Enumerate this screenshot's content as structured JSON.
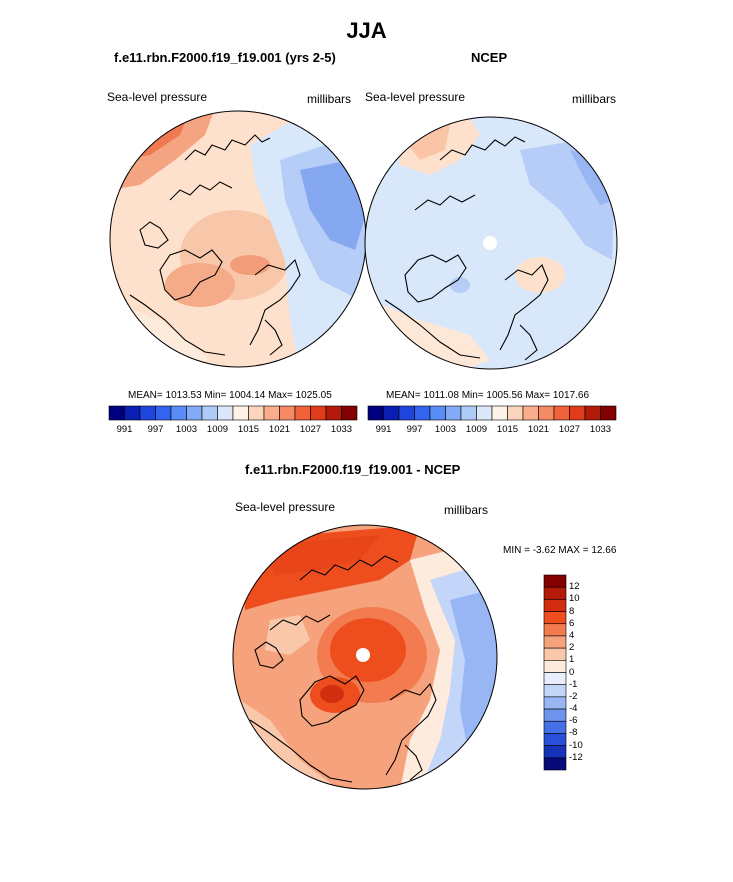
{
  "figure": {
    "title": "JJA"
  },
  "panels": [
    {
      "id": "model",
      "title": "f.e11.rbn.F2000.f19_f19.001 (yrs 2-5)",
      "left_label": "Sea-level pressure",
      "right_label": "millibars",
      "stats": "MEAN= 1013.53  Min= 1004.14  Max= 1025.05",
      "mean": 1013.53,
      "min": 1004.14,
      "max": 1025.05
    },
    {
      "id": "ncep",
      "title": "NCEP",
      "left_label": "Sea-level pressure",
      "right_label": "millibars",
      "stats": "MEAN= 1011.08  Min= 1005.56  Max= 1017.66",
      "mean": 1011.08,
      "min": 1005.56,
      "max": 1017.66
    },
    {
      "id": "diff",
      "title": "f.e11.rbn.F2000.f19_f19.001 - NCEP",
      "left_label": "Sea-level pressure",
      "right_label": "millibars",
      "stats": "MIN =  -3.62 MAX =  12.66",
      "min": -3.62,
      "max": 12.66
    }
  ],
  "abs_colorbar": {
    "colors": [
      "#00007f",
      "#0a1eb4",
      "#1e46dc",
      "#3264f0",
      "#5a8cf5",
      "#82aaf7",
      "#afcbf8",
      "#dce8fa",
      "#fff2e6",
      "#fcd5bc",
      "#f9ad8a",
      "#f68a64",
      "#f2623a",
      "#e13c1a",
      "#b41a0a",
      "#820000"
    ],
    "tick_labels": [
      "991",
      "997",
      "1003",
      "1009",
      "1015",
      "1021",
      "1027",
      "1033"
    ]
  },
  "diff_colorbar": {
    "colors": [
      "#820000",
      "#b41a0a",
      "#d22d0f",
      "#ee4e1e",
      "#f37b4f",
      "#f6a27c",
      "#f9c8aa",
      "#fdebdd",
      "#e8eefc",
      "#c3d5f8",
      "#97b6f3",
      "#6e94ee",
      "#4670e6",
      "#2a4fd8",
      "#1632b8",
      "#050a78"
    ],
    "tick_labels": [
      "12",
      "10",
      "8",
      "6",
      "4",
      "2",
      "1",
      "0",
      "-1",
      "-2",
      "-4",
      "-6",
      "-8",
      "-10",
      "-12"
    ]
  }
}
